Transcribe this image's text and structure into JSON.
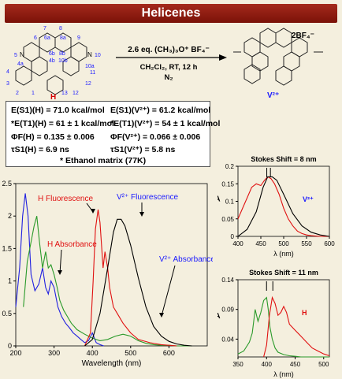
{
  "banner": {
    "title": "Helicenes"
  },
  "reaction": {
    "reagent_line1": "2.6 eq. (CH₃)₃O⁺ BF₄⁻",
    "reagent_line2": "CH₂Cl₂, RT, 12 h",
    "reagent_line3": "N₂",
    "reactant_label": "H",
    "product_label": "V²⁺",
    "counterion": "2BF₄⁻",
    "atom_numbers": [
      "7",
      "8",
      "6a",
      "6",
      "8a",
      "9",
      "5",
      "N",
      "N",
      "10",
      "4a",
      "6b",
      "8b",
      "10a",
      "4b",
      "10b",
      "4",
      "11",
      "3",
      "12",
      "2",
      "1",
      "13",
      "12"
    ]
  },
  "properties": {
    "left": [
      "E(S1)(H) = 71.0 kcal/mol",
      "*E(T1)(H) = 61 ± 1 kcal/mol",
      "ΦF(H) = 0.135 ± 0.006",
      "τS1(H) = 6.9 ns"
    ],
    "right": [
      "E(S1)(V²⁺) = 61.2 kcal/mol",
      "*E(T1)(V²⁺) = 54 ± 1 kcal/mol",
      "ΦF(V²⁺) = 0.066 ± 0.006",
      "τS1(V²⁺) = 5.8 ns"
    ],
    "footnote": "* Ethanol matrix (77K)"
  },
  "colors": {
    "red": "#e01010",
    "blue": "#2020e0",
    "green": "#2a9a2a",
    "black": "#000000"
  },
  "chart_data": [
    {
      "type": "line",
      "xlabel": "Wavelength (nm)",
      "ylabel": "",
      "xlim": [
        200,
        700
      ],
      "ylim": [
        0,
        2.5
      ],
      "xticks": [
        200,
        300,
        400,
        500,
        600
      ],
      "yticks": [
        0,
        0.5,
        1,
        1.5,
        2,
        2.5
      ],
      "annotations": [
        "H Fluorescence",
        "V²⁺ Fluorescence",
        "H Absorbance",
        "V²⁺ Absorbance"
      ],
      "series": [
        {
          "name": "H Absorbance",
          "color": "#2020e0",
          "x": [
            200,
            210,
            218,
            225,
            232,
            240,
            250,
            260,
            270,
            278,
            285,
            292,
            300,
            310,
            320,
            330,
            340,
            350,
            360,
            370,
            380,
            390,
            400,
            410,
            420,
            430
          ],
          "y": [
            0.6,
            1.2,
            2.0,
            2.35,
            2.0,
            1.1,
            0.85,
            0.95,
            1.2,
            0.9,
            0.8,
            1.0,
            0.9,
            0.6,
            0.45,
            0.35,
            0.28,
            0.2,
            0.15,
            0.1,
            0.05,
            0.08,
            0.2,
            0.05,
            0.02,
            0.0
          ]
        },
        {
          "name": "V²⁺ Absorbance",
          "color": "#2a9a2a",
          "x": [
            220,
            230,
            240,
            248,
            255,
            262,
            270,
            278,
            285,
            292,
            300,
            308,
            315,
            325,
            335,
            345,
            360,
            380,
            400,
            420,
            440,
            460,
            480,
            500,
            520,
            540,
            560,
            580,
            600,
            620,
            640,
            660
          ],
          "y": [
            0.6,
            1.3,
            1.6,
            1.85,
            2.0,
            1.6,
            1.2,
            1.45,
            1.2,
            1.25,
            1.1,
            0.9,
            0.7,
            0.55,
            0.45,
            0.35,
            0.25,
            0.18,
            0.12,
            0.08,
            0.1,
            0.15,
            0.18,
            0.15,
            0.08,
            0.04,
            0.02,
            0.01,
            0.01,
            0.0,
            0.0,
            0.0
          ]
        },
        {
          "name": "H Fluorescence",
          "color": "#e01010",
          "x": [
            380,
            395,
            402,
            408,
            415,
            420,
            428,
            433,
            440,
            445,
            455,
            465,
            480,
            500,
            520,
            550,
            580,
            620
          ],
          "y": [
            0.0,
            0.2,
            1.0,
            1.8,
            2.1,
            1.9,
            1.2,
            1.45,
            1.2,
            0.9,
            0.6,
            0.5,
            0.35,
            0.2,
            0.1,
            0.05,
            0.02,
            0.0
          ]
        },
        {
          "name": "V²⁺ Fluorescence",
          "color": "#000000",
          "x": [
            380,
            400,
            420,
            440,
            455,
            465,
            475,
            485,
            500,
            520,
            540,
            560,
            580,
            600,
            620,
            640,
            660
          ],
          "y": [
            0.0,
            0.1,
            0.5,
            1.2,
            1.75,
            1.95,
            1.95,
            1.85,
            1.55,
            1.05,
            0.6,
            0.3,
            0.15,
            0.07,
            0.03,
            0.01,
            0.0
          ]
        }
      ]
    },
    {
      "type": "line",
      "title": "Stokes Shift = 8 nm",
      "xlabel": "λ (nm)",
      "ylabel": "A",
      "xlim": [
        400,
        600
      ],
      "ylim": [
        0,
        0.2
      ],
      "xticks": [
        400,
        450,
        500,
        550,
        600
      ],
      "yticks": [
        0,
        0.05,
        0.1,
        0.15,
        0.2
      ],
      "annotations": [
        "V²⁺"
      ],
      "series": [
        {
          "name": "absorbance",
          "color": "#e01010",
          "x": [
            400,
            410,
            420,
            430,
            440,
            450,
            458,
            465,
            472,
            480,
            490,
            500,
            510,
            520,
            530,
            540,
            550,
            560,
            570,
            580,
            590,
            600
          ],
          "y": [
            0.05,
            0.08,
            0.11,
            0.14,
            0.15,
            0.145,
            0.16,
            0.17,
            0.165,
            0.15,
            0.12,
            0.08,
            0.05,
            0.03,
            0.015,
            0.008,
            0.004,
            0.002,
            0.001,
            0,
            0,
            0
          ]
        },
        {
          "name": "emission",
          "color": "#000000",
          "x": [
            400,
            420,
            440,
            455,
            465,
            475,
            485,
            500,
            520,
            540,
            560,
            580,
            600
          ],
          "y": [
            0.0,
            0.02,
            0.07,
            0.14,
            0.17,
            0.17,
            0.16,
            0.12,
            0.065,
            0.03,
            0.012,
            0.004,
            0.0
          ]
        }
      ]
    },
    {
      "type": "line",
      "title": "Stokes Shift = 11 nm",
      "xlabel": "λ (nm)",
      "ylabel": "A",
      "xlim": [
        350,
        510
      ],
      "ylim": [
        0.01,
        0.14
      ],
      "xticks": [
        350,
        400,
        450,
        500
      ],
      "yticks": [
        0.04,
        0.09,
        0.14
      ],
      "annotations": [
        "H"
      ],
      "series": [
        {
          "name": "absorbance",
          "color": "#2a9a2a",
          "x": [
            350,
            360,
            370,
            375,
            380,
            385,
            390,
            395,
            400,
            403,
            406,
            410,
            415,
            420,
            430,
            440,
            450,
            460,
            480,
            510
          ],
          "y": [
            0.015,
            0.02,
            0.035,
            0.05,
            0.09,
            0.07,
            0.085,
            0.105,
            0.11,
            0.09,
            0.06,
            0.04,
            0.025,
            0.018,
            0.014,
            0.012,
            0.011,
            0.01,
            0.01,
            0.01
          ]
        },
        {
          "name": "emission",
          "color": "#e01010",
          "x": [
            395,
            400,
            405,
            410,
            415,
            420,
            425,
            430,
            435,
            440,
            450,
            460,
            470,
            480,
            490,
            500,
            510
          ],
          "y": [
            0.01,
            0.03,
            0.08,
            0.11,
            0.1,
            0.08,
            0.085,
            0.095,
            0.085,
            0.065,
            0.055,
            0.045,
            0.035,
            0.025,
            0.02,
            0.015,
            0.012
          ]
        }
      ]
    }
  ]
}
